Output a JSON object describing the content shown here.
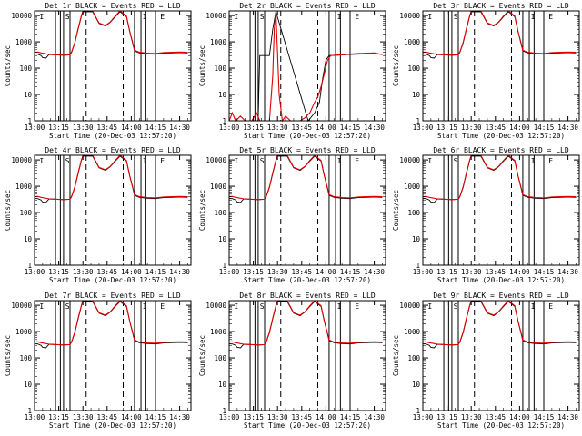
{
  "chart_data": {
    "type": "line",
    "layout": "3x3 grid",
    "ylabel": "Counts/sec",
    "xlabel": "Start Time (20-Dec-03 12:57:20)",
    "x_tick_labels": [
      "13:00",
      "13:15",
      "13:30",
      "13:45",
      "14:00",
      "14:15",
      "14:30"
    ],
    "x_ticks_minutes": [
      0,
      15,
      30,
      45,
      60,
      75,
      90
    ],
    "xlim_minutes": [
      0,
      97
    ],
    "y_tick_labels": [
      "1",
      "10",
      "100",
      "1000",
      "10000"
    ],
    "ylim": [
      1,
      15000
    ],
    "yscale": "log",
    "legend": "BLACK = Events, RED = LLD",
    "series_colors": {
      "events": "#000000",
      "lld": "#e00000"
    },
    "marker_labels": [
      "I",
      "S",
      "I",
      "E"
    ],
    "panels": [
      {
        "title": "Det 1r  BLACK = Events  RED = LLD",
        "kind": "normal"
      },
      {
        "title": "Det 2r  BLACK = Events  RED = LLD",
        "kind": "det2"
      },
      {
        "title": "Det 3r  BLACK = Events  RED = LLD",
        "kind": "normal"
      },
      {
        "title": "Det 4r  BLACK = Events  RED = LLD",
        "kind": "normal"
      },
      {
        "title": "Det 5r  BLACK = Events  RED = LLD",
        "kind": "normal"
      },
      {
        "title": "Det 6r  BLACK = Events  RED = LLD",
        "kind": "normal"
      },
      {
        "title": "Det 7r  BLACK = Events  RED = LLD",
        "kind": "normal"
      },
      {
        "title": "Det 8r  BLACK = Events  RED = LLD",
        "kind": "normal"
      },
      {
        "title": "Det 9r  BLACK = Events  RED = LLD",
        "kind": "normal"
      }
    ],
    "normal_series": {
      "events": [
        [
          0,
          350
        ],
        [
          2,
          340
        ],
        [
          4,
          300
        ],
        [
          5,
          250
        ],
        [
          7,
          240
        ],
        [
          9,
          330
        ],
        [
          14,
          320
        ],
        [
          18,
          310
        ],
        [
          22,
          320
        ],
        [
          23,
          400
        ],
        [
          25,
          900
        ],
        [
          27,
          3000
        ],
        [
          29,
          9000
        ],
        [
          30,
          14000
        ],
        [
          36,
          14000
        ],
        [
          40,
          5000
        ],
        [
          44,
          4000
        ],
        [
          47,
          5500
        ],
        [
          50,
          9000
        ],
        [
          53,
          14000
        ],
        [
          57,
          9000
        ],
        [
          59,
          2500
        ],
        [
          61,
          800
        ],
        [
          62,
          450
        ],
        [
          65,
          380
        ],
        [
          70,
          350
        ],
        [
          75,
          340
        ],
        [
          80,
          370
        ],
        [
          85,
          380
        ],
        [
          90,
          390
        ],
        [
          95,
          380
        ]
      ],
      "lld": [
        [
          0,
          400
        ],
        [
          2,
          410
        ],
        [
          4,
          380
        ],
        [
          6,
          360
        ],
        [
          9,
          330
        ],
        [
          14,
          320
        ],
        [
          18,
          310
        ],
        [
          22,
          320
        ],
        [
          23,
          420
        ],
        [
          25,
          950
        ],
        [
          27,
          3200
        ],
        [
          29,
          9500
        ],
        [
          30,
          15000
        ],
        [
          36,
          15000
        ],
        [
          40,
          5200
        ],
        [
          44,
          4200
        ],
        [
          47,
          5700
        ],
        [
          50,
          9500
        ],
        [
          53,
          15000
        ],
        [
          57,
          9500
        ],
        [
          59,
          2600
        ],
        [
          61,
          850
        ],
        [
          62,
          480
        ],
        [
          65,
          400
        ],
        [
          70,
          370
        ],
        [
          75,
          360
        ],
        [
          80,
          390
        ],
        [
          85,
          400
        ],
        [
          90,
          410
        ],
        [
          95,
          400
        ]
      ]
    },
    "det2_series": {
      "events": [
        [
          18,
          1
        ],
        [
          19,
          300
        ],
        [
          22,
          300
        ],
        [
          25,
          300
        ],
        [
          27,
          3000
        ],
        [
          29,
          14000
        ],
        [
          49,
          1
        ],
        [
          53,
          2
        ],
        [
          56,
          5
        ],
        [
          58,
          40
        ],
        [
          60,
          200
        ],
        [
          62,
          300
        ],
        [
          70,
          320
        ],
        [
          80,
          340
        ],
        [
          90,
          360
        ],
        [
          95,
          330
        ]
      ],
      "lld": [
        [
          0,
          1
        ],
        [
          2,
          2
        ],
        [
          4,
          1
        ],
        [
          7,
          1.5
        ],
        [
          10,
          1
        ],
        [
          14,
          1
        ],
        [
          17,
          2
        ],
        [
          19,
          1
        ],
        [
          22,
          1
        ],
        [
          25,
          1
        ],
        [
          27,
          50
        ],
        [
          28,
          3000
        ],
        [
          29,
          14000
        ],
        [
          31,
          10
        ],
        [
          33,
          1
        ],
        [
          35,
          1.5
        ],
        [
          38,
          1
        ],
        [
          41,
          1
        ],
        [
          44,
          1
        ],
        [
          47,
          1.3
        ],
        [
          50,
          2
        ],
        [
          53,
          5
        ],
        [
          55,
          8
        ],
        [
          57,
          20
        ],
        [
          59,
          60
        ],
        [
          61,
          200
        ],
        [
          63,
          300
        ],
        [
          70,
          320
        ],
        [
          80,
          360
        ],
        [
          90,
          380
        ],
        [
          95,
          330
        ]
      ]
    },
    "vlines_solid_minutes": [
      13,
      16,
      18,
      22,
      62,
      66,
      69,
      75
    ],
    "vlines_dashed_minutes": [
      32,
      55
    ]
  }
}
